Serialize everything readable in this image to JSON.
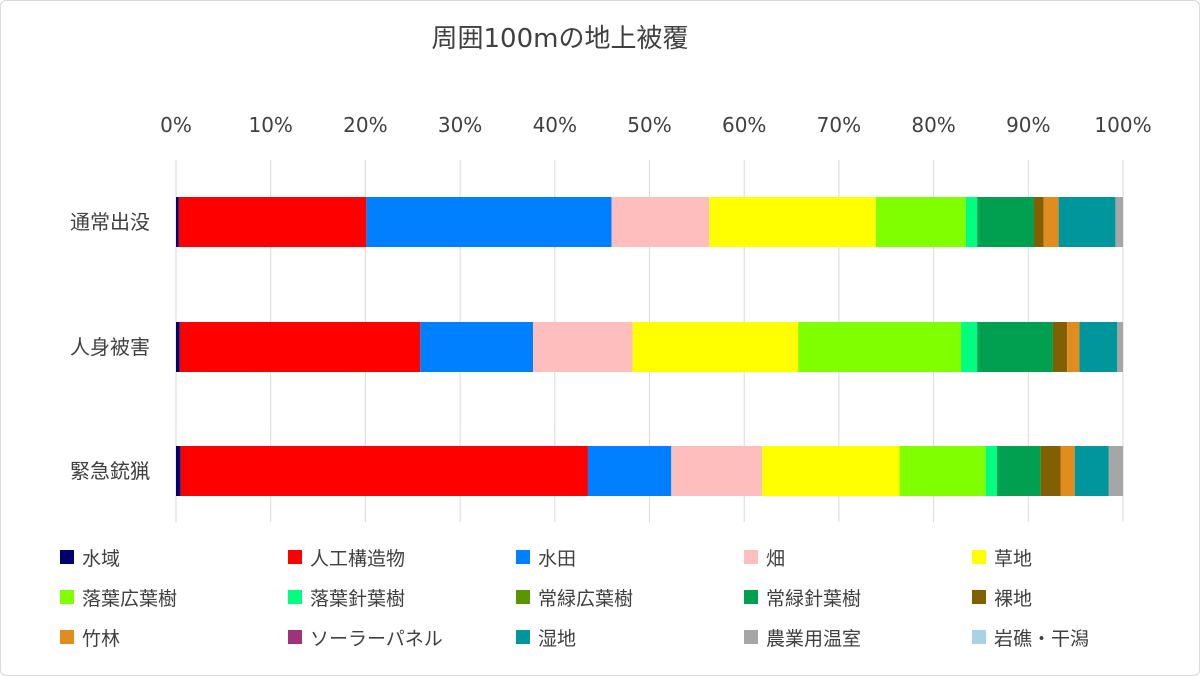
{
  "chart_data": {
    "type": "bar",
    "orientation": "horizontal",
    "stacked": "percent",
    "title": "周囲100mの地上被覆",
    "xlim": [
      0,
      100
    ],
    "x_ticks": [
      "0%",
      "10%",
      "20%",
      "30%",
      "40%",
      "50%",
      "60%",
      "70%",
      "80%",
      "90%",
      "100%"
    ],
    "x_axis_position": "top",
    "grid": true,
    "legend_position": "bottom",
    "categories": [
      "通常出没",
      "人身被害",
      "緊急銃猟"
    ],
    "series": [
      {
        "name": "水域",
        "color": "#00006e",
        "values": [
          0.3,
          0.4,
          0.5
        ]
      },
      {
        "name": "人工構造物",
        "color": "#ff0000",
        "values": [
          19.8,
          25.4,
          43.0
        ]
      },
      {
        "name": "水田",
        "color": "#0080ff",
        "values": [
          25.9,
          11.9,
          8.8
        ]
      },
      {
        "name": "畑",
        "color": "#ffbebe",
        "values": [
          10.3,
          10.5,
          9.6
        ]
      },
      {
        "name": "草地",
        "color": "#ffff00",
        "values": [
          17.6,
          17.5,
          14.5
        ]
      },
      {
        "name": "落葉広葉樹",
        "color": "#80ff00",
        "values": [
          9.5,
          17.2,
          9.1
        ]
      },
      {
        "name": "落葉針葉樹",
        "color": "#00ff80",
        "values": [
          1.2,
          1.7,
          1.2
        ]
      },
      {
        "name": "常緑広葉樹",
        "color": "#5a9600",
        "values": [
          0.0,
          0.0,
          0.0
        ]
      },
      {
        "name": "常緑針葉樹",
        "color": "#00a050",
        "values": [
          6.0,
          8.0,
          4.6
        ]
      },
      {
        "name": "裸地",
        "color": "#806000",
        "values": [
          1.0,
          1.5,
          2.1
        ]
      },
      {
        "name": "竹林",
        "color": "#e08c1e",
        "values": [
          1.6,
          1.3,
          1.5
        ]
      },
      {
        "name": "ソーラーパネル",
        "color": "#a0327a",
        "values": [
          0.0,
          0.0,
          0.0
        ]
      },
      {
        "name": "湿地",
        "color": "#00969b",
        "values": [
          6.0,
          4.0,
          3.6
        ]
      },
      {
        "name": "農業用温室",
        "color": "#a6a6a6",
        "values": [
          0.8,
          0.6,
          1.5
        ]
      },
      {
        "name": "岩礁・干潟",
        "color": "#aad2e6",
        "values": [
          0.0,
          0.0,
          0.0
        ]
      }
    ]
  }
}
